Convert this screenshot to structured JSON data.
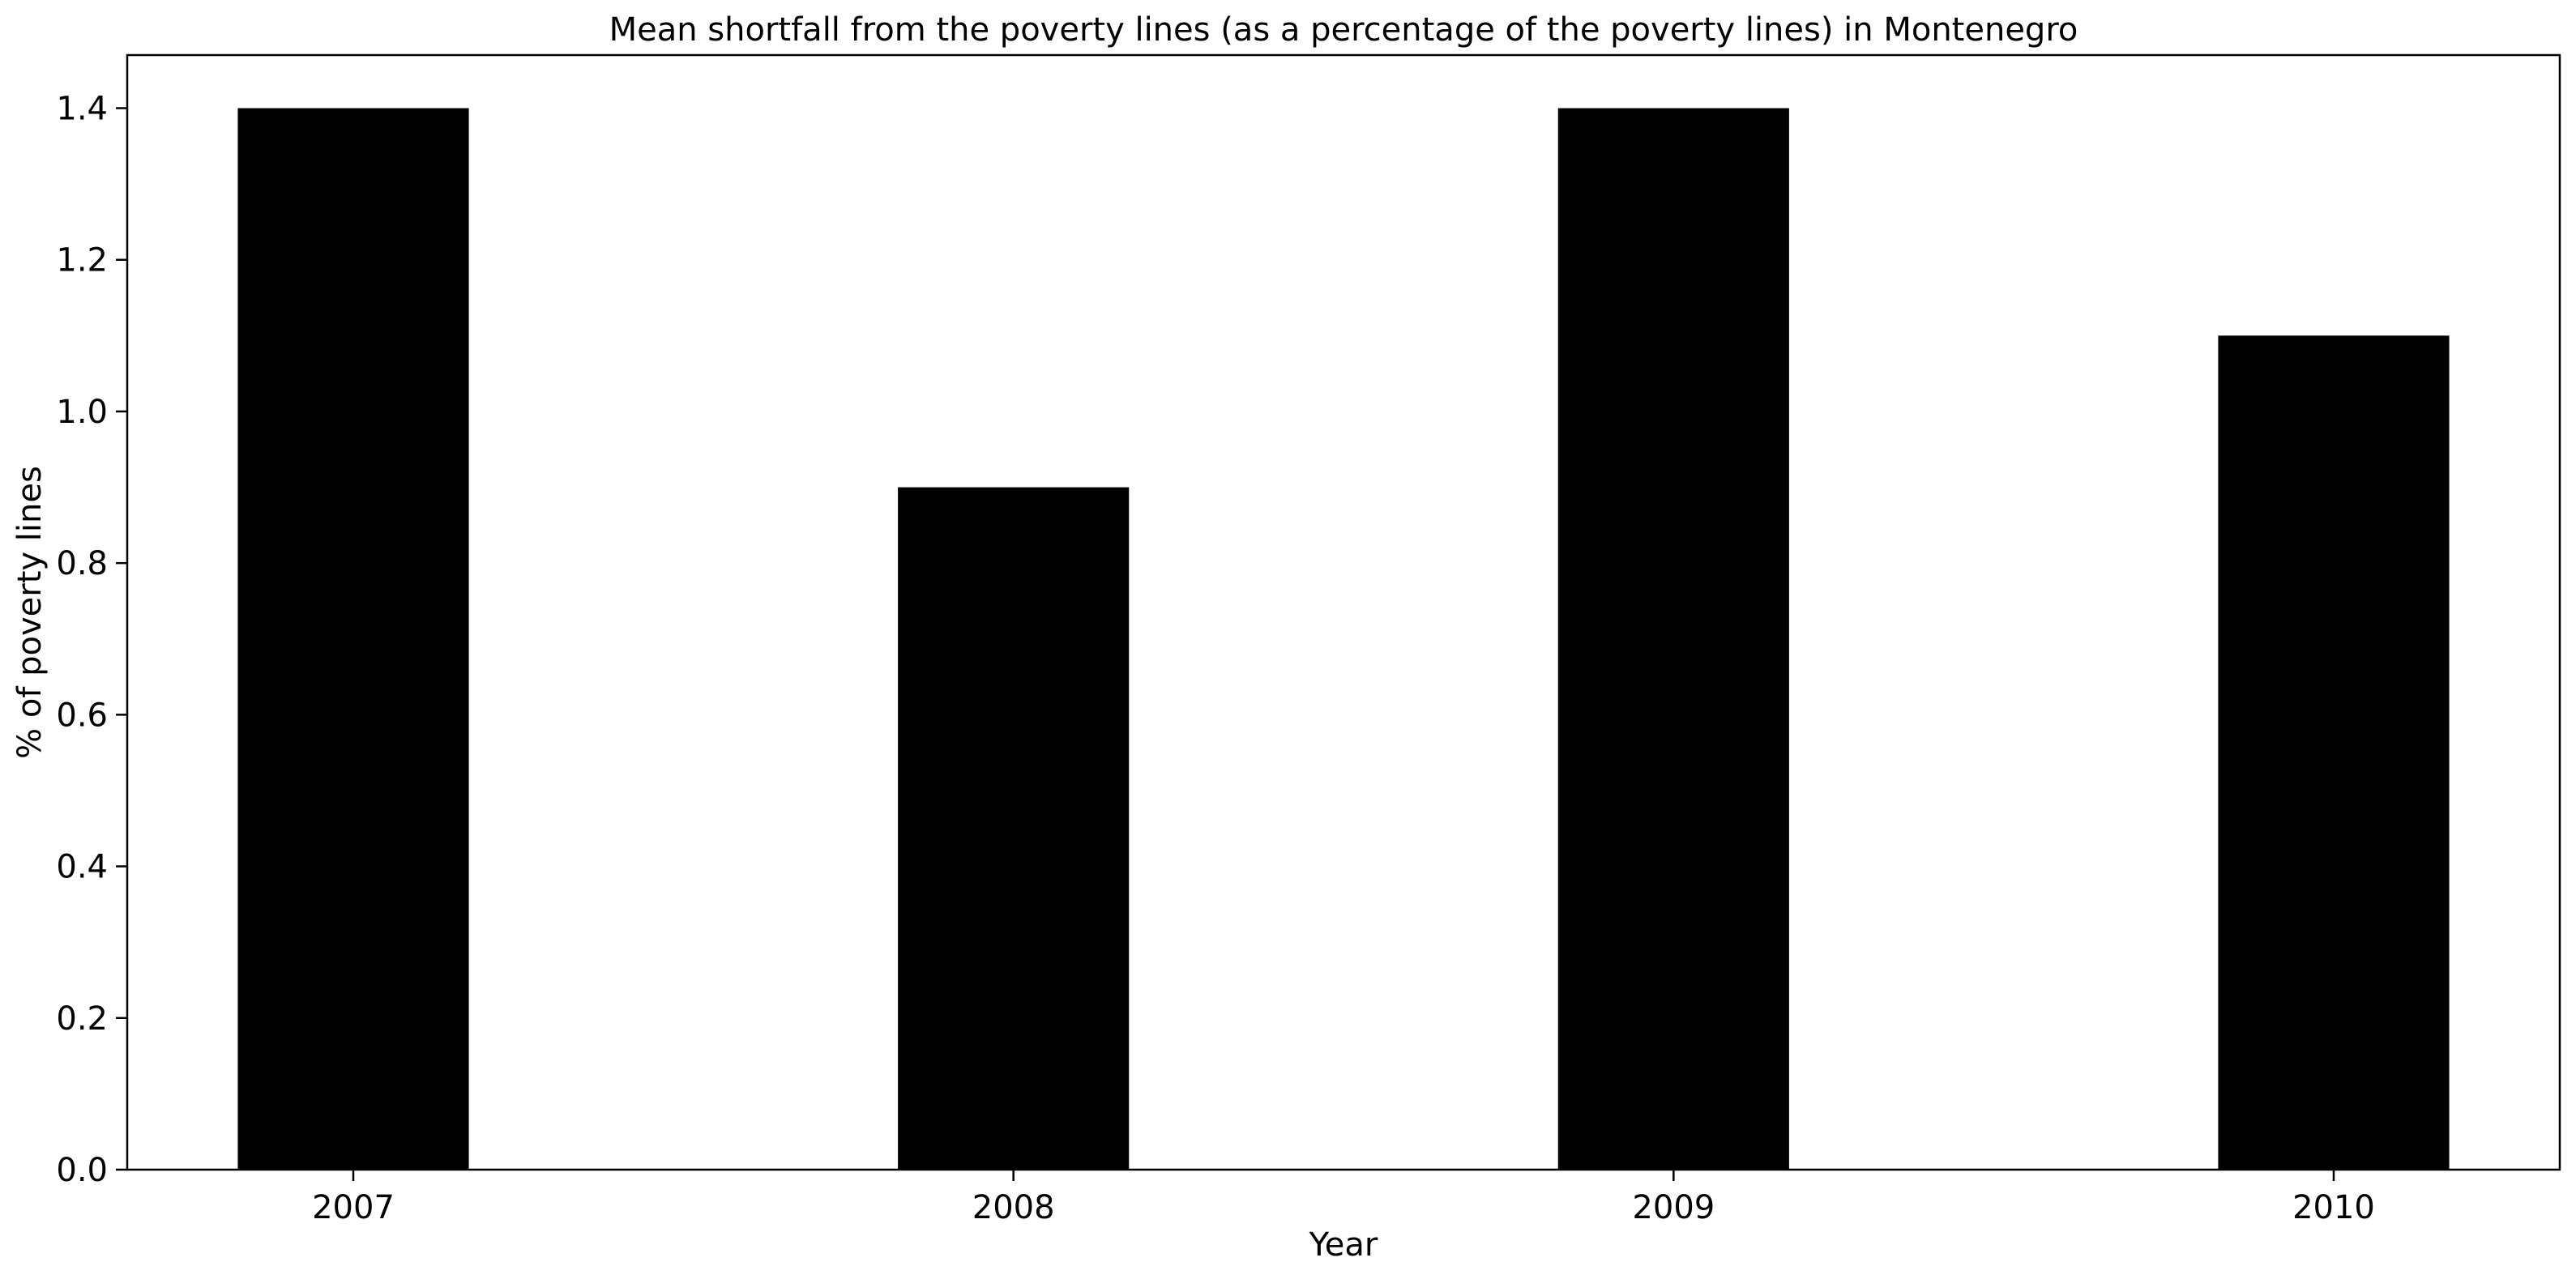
{
  "chart_data": {
    "type": "bar",
    "title": "Mean shortfall from the poverty lines (as a percentage of the poverty lines) in Montenegro",
    "xlabel": "Year",
    "ylabel": "% of poverty lines",
    "categories": [
      "2007",
      "2008",
      "2009",
      "2010"
    ],
    "values": [
      1.4,
      0.9,
      1.4,
      1.1
    ],
    "ylim": [
      0,
      1.47
    ],
    "yticks": [
      "0.0",
      "0.2",
      "0.4",
      "0.6",
      "0.8",
      "1.0",
      "1.2",
      "1.4"
    ],
    "bar_color": "#000000",
    "grid": false,
    "legend": "none"
  }
}
